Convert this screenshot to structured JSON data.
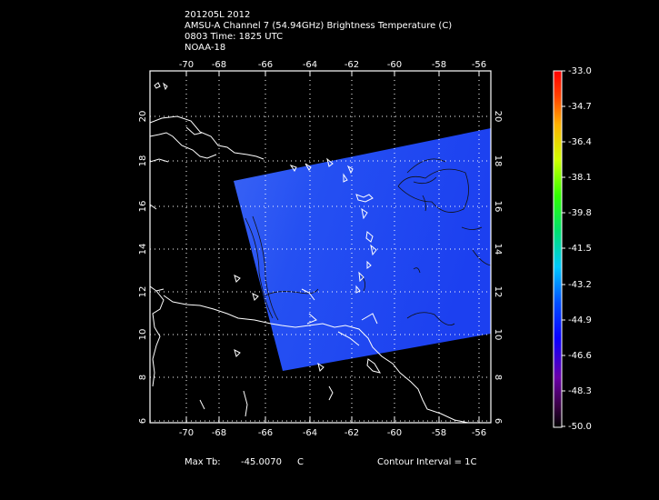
{
  "header": {
    "line1": "201205L 2012",
    "line2": "AMSU-A Channel 7 (54.94GHz) Brightness Temperature (C)",
    "line3": "0803 Time: 1825 UTC",
    "line4": "NOAA-18"
  },
  "map": {
    "lon_ticks": [
      "-70",
      "-68",
      "-66",
      "-64",
      "-62",
      "-60",
      "-58",
      "-56"
    ],
    "lat_ticks": [
      "6",
      "8",
      "10",
      "12",
      "14",
      "16",
      "18",
      "20"
    ],
    "lon_range": [
      -71.5,
      -55.5
    ],
    "lat_range": [
      6,
      22
    ],
    "swath_color": "#1c40f0",
    "swath_color_light": "#3a64f5",
    "coast_color": "#ffffff",
    "grid": "dotted"
  },
  "colorbar": {
    "labels": [
      "-33.0",
      "-34.7",
      "-36.4",
      "-38.1",
      "-39.8",
      "-41.5",
      "-43.2",
      "-44.9",
      "-46.6",
      "-48.3",
      "-50.0"
    ],
    "range": [
      -50.0,
      -33.0
    ]
  },
  "footer": {
    "max_label": "Max Tb:",
    "max_value": "-45.0070",
    "unit": "C",
    "contour": "Contour Interval = 1C"
  }
}
